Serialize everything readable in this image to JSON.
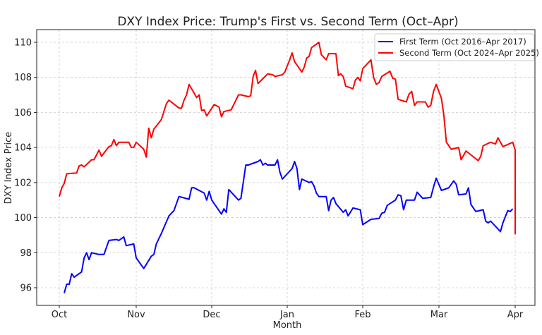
{
  "chart_data": {
    "type": "line",
    "title": "DXY Index Price: Trump's First vs. Second Term (Oct–Apr)",
    "xlabel": "Month",
    "ylabel": "DXY Index Price",
    "x_ticks": [
      "Oct",
      "Nov",
      "Dec",
      "Jan",
      "Feb",
      "Mar",
      "Apr"
    ],
    "y_ticks": [
      96,
      98,
      100,
      102,
      104,
      106,
      108,
      110
    ],
    "ylim": [
      95,
      111
    ],
    "grid": true,
    "legend_position": "top-right",
    "series": [
      {
        "name": "First Term (Oct 2016–Apr 2017)",
        "color": "#0000ff",
        "dates": [
          "2016-10-03",
          "2016-10-04",
          "2016-10-05",
          "2016-10-06",
          "2016-10-07",
          "2016-10-10",
          "2016-10-11",
          "2016-10-12",
          "2016-10-13",
          "2016-10-14",
          "2016-10-17",
          "2016-10-19",
          "2016-10-21",
          "2016-10-24",
          "2016-10-25",
          "2016-10-27",
          "2016-10-28",
          "2016-10-31",
          "2016-11-01",
          "2016-11-03",
          "2016-11-04",
          "2016-11-07",
          "2016-11-08",
          "2016-11-09",
          "2016-11-11",
          "2016-11-14",
          "2016-11-16",
          "2016-11-18",
          "2016-11-22",
          "2016-11-23",
          "2016-11-24",
          "2016-11-28",
          "2016-11-29",
          "2016-11-30",
          "2016-12-01",
          "2016-12-05",
          "2016-12-06",
          "2016-12-07",
          "2016-12-08",
          "2016-12-12",
          "2016-12-13",
          "2016-12-15",
          "2016-12-16",
          "2016-12-20",
          "2016-12-21",
          "2016-12-22",
          "2016-12-23",
          "2016-12-24",
          "2016-12-27",
          "2016-12-28",
          "2016-12-29",
          "2016-12-30",
          "2017-01-03",
          "2017-01-04",
          "2017-01-05",
          "2017-01-06",
          "2017-01-07",
          "2017-01-10",
          "2017-01-11",
          "2017-01-12",
          "2017-01-13",
          "2017-01-14",
          "2017-01-17",
          "2017-01-18",
          "2017-01-19",
          "2017-01-20",
          "2017-01-21",
          "2017-01-24",
          "2017-01-25",
          "2017-01-26",
          "2017-01-28",
          "2017-01-31",
          "2017-02-01",
          "2017-02-04",
          "2017-02-07",
          "2017-02-08",
          "2017-02-09",
          "2017-02-10",
          "2017-02-11",
          "2017-02-13",
          "2017-02-14",
          "2017-02-15",
          "2017-02-16",
          "2017-02-17",
          "2017-02-20",
          "2017-02-21",
          "2017-02-23",
          "2017-02-26",
          "2017-02-27",
          "2017-02-28",
          "2017-03-02",
          "2017-03-05",
          "2017-03-07",
          "2017-03-08",
          "2017-03-09",
          "2017-03-12",
          "2017-03-13",
          "2017-03-14",
          "2017-03-16",
          "2017-03-19",
          "2017-03-20",
          "2017-03-21",
          "2017-03-22",
          "2017-03-26",
          "2017-03-27",
          "2017-03-29",
          "2017-03-30",
          "2017-03-31"
        ],
        "values": [
          95.7,
          96.2,
          96.2,
          96.8,
          96.6,
          96.9,
          97.7,
          98.0,
          97.6,
          98.0,
          97.9,
          97.9,
          98.7,
          98.75,
          98.7,
          98.9,
          98.4,
          98.5,
          97.7,
          97.3,
          97.1,
          97.8,
          97.9,
          98.5,
          99.1,
          100.1,
          100.4,
          101.2,
          101.05,
          101.7,
          101.7,
          101.4,
          101.0,
          101.5,
          101.0,
          100.2,
          100.5,
          100.3,
          101.6,
          101.0,
          101.1,
          103.0,
          103.0,
          103.2,
          103.3,
          103.0,
          103.1,
          103.0,
          103.0,
          103.3,
          102.6,
          102.2,
          102.8,
          103.2,
          102.8,
          101.6,
          102.2,
          102.0,
          102.05,
          101.8,
          101.4,
          101.2,
          101.2,
          100.4,
          101.0,
          101.15,
          100.8,
          100.3,
          100.45,
          100.1,
          100.55,
          100.45,
          99.6,
          99.9,
          99.95,
          100.25,
          100.3,
          100.7,
          100.8,
          101.0,
          101.3,
          101.25,
          100.45,
          101.0,
          101.0,
          101.45,
          101.1,
          101.15,
          101.75,
          102.25,
          101.55,
          101.7,
          102.1,
          101.9,
          101.3,
          101.35,
          101.7,
          100.75,
          100.35,
          100.45,
          99.8,
          99.7,
          99.8,
          99.2,
          99.7,
          100.4,
          100.35,
          100.5
        ]
      },
      {
        "name": "Second Term (Oct 2024–Apr 2025)",
        "color": "#ff0000",
        "dates": [
          "2024-10-01",
          "2024-10-02",
          "2024-10-03",
          "2024-10-04",
          "2024-10-08",
          "2024-10-09",
          "2024-10-10",
          "2024-10-11",
          "2024-10-14",
          "2024-10-15",
          "2024-10-17",
          "2024-10-18",
          "2024-10-21",
          "2024-10-22",
          "2024-10-23",
          "2024-10-24",
          "2024-10-25",
          "2024-10-29",
          "2024-10-30",
          "2024-10-31",
          "2024-11-01",
          "2024-11-04",
          "2024-11-05",
          "2024-11-06",
          "2024-11-07",
          "2024-11-08",
          "2024-11-10",
          "2024-11-11",
          "2024-11-13",
          "2024-11-14",
          "2024-11-18",
          "2024-11-19",
          "2024-11-20",
          "2024-11-21",
          "2024-11-22",
          "2024-11-25",
          "2024-11-26",
          "2024-11-27",
          "2024-11-28",
          "2024-11-29",
          "2024-12-02",
          "2024-12-04",
          "2024-12-05",
          "2024-12-06",
          "2024-12-09",
          "2024-12-12",
          "2024-12-13",
          "2024-12-16",
          "2024-12-17",
          "2024-12-18",
          "2024-12-19",
          "2024-12-20",
          "2024-12-24",
          "2024-12-26",
          "2024-12-27",
          "2024-12-30",
          "2024-12-31",
          "2025-01-02",
          "2025-01-03",
          "2025-01-04",
          "2025-01-07",
          "2025-01-08",
          "2025-01-09",
          "2025-01-10",
          "2025-01-11",
          "2025-01-14",
          "2025-01-15",
          "2025-01-17",
          "2025-01-18",
          "2025-01-21",
          "2025-01-22",
          "2025-01-23",
          "2025-01-24",
          "2025-01-25",
          "2025-01-28",
          "2025-01-29",
          "2025-01-30",
          "2025-01-31",
          "2025-02-01",
          "2025-02-04",
          "2025-02-05",
          "2025-02-06",
          "2025-02-07",
          "2025-02-08",
          "2025-02-11",
          "2025-02-12",
          "2025-02-13",
          "2025-02-14",
          "2025-02-17",
          "2025-02-18",
          "2025-02-19",
          "2025-02-20",
          "2025-02-21",
          "2025-02-24",
          "2025-02-25",
          "2025-02-26",
          "2025-02-27",
          "2025-02-28",
          "2025-03-02",
          "2025-03-03",
          "2025-03-04",
          "2025-03-06",
          "2025-03-09",
          "2025-03-10",
          "2025-03-12",
          "2025-03-17",
          "2025-03-18",
          "2025-03-19",
          "2025-03-22",
          "2025-03-24",
          "2025-03-25",
          "2025-03-27",
          "2025-03-31",
          "2025-04-01",
          "2025-04-01"
        ],
        "values": [
          101.2,
          101.7,
          101.95,
          102.5,
          102.55,
          102.95,
          103.0,
          102.9,
          103.3,
          103.3,
          103.85,
          103.5,
          104.05,
          104.1,
          104.45,
          104.1,
          104.3,
          104.3,
          104.0,
          104.0,
          104.3,
          103.9,
          103.45,
          105.1,
          104.55,
          105.05,
          105.4,
          105.6,
          106.5,
          106.7,
          106.25,
          106.25,
          106.7,
          107.0,
          107.6,
          106.85,
          107.0,
          106.1,
          106.15,
          105.8,
          106.45,
          106.3,
          105.75,
          106.05,
          106.15,
          107.0,
          107.0,
          106.9,
          106.95,
          108.05,
          108.4,
          107.65,
          108.2,
          108.15,
          108.05,
          108.15,
          108.3,
          109.0,
          109.4,
          108.9,
          108.3,
          108.6,
          109.1,
          109.2,
          109.7,
          110.0,
          109.3,
          109.0,
          109.35,
          109.35,
          108.1,
          108.2,
          108.05,
          107.5,
          107.35,
          107.85,
          108.0,
          107.8,
          108.5,
          109.0,
          108.0,
          107.6,
          107.7,
          108.05,
          108.35,
          107.95,
          107.9,
          106.75,
          106.6,
          107.05,
          107.2,
          106.4,
          106.6,
          106.6,
          106.3,
          106.4,
          107.2,
          107.6,
          106.8,
          105.8,
          104.3,
          103.9,
          104.0,
          103.3,
          103.8,
          103.25,
          103.5,
          104.1,
          104.3,
          104.2,
          104.55,
          104.05,
          104.3,
          103.85,
          99.05
        ]
      }
    ]
  }
}
